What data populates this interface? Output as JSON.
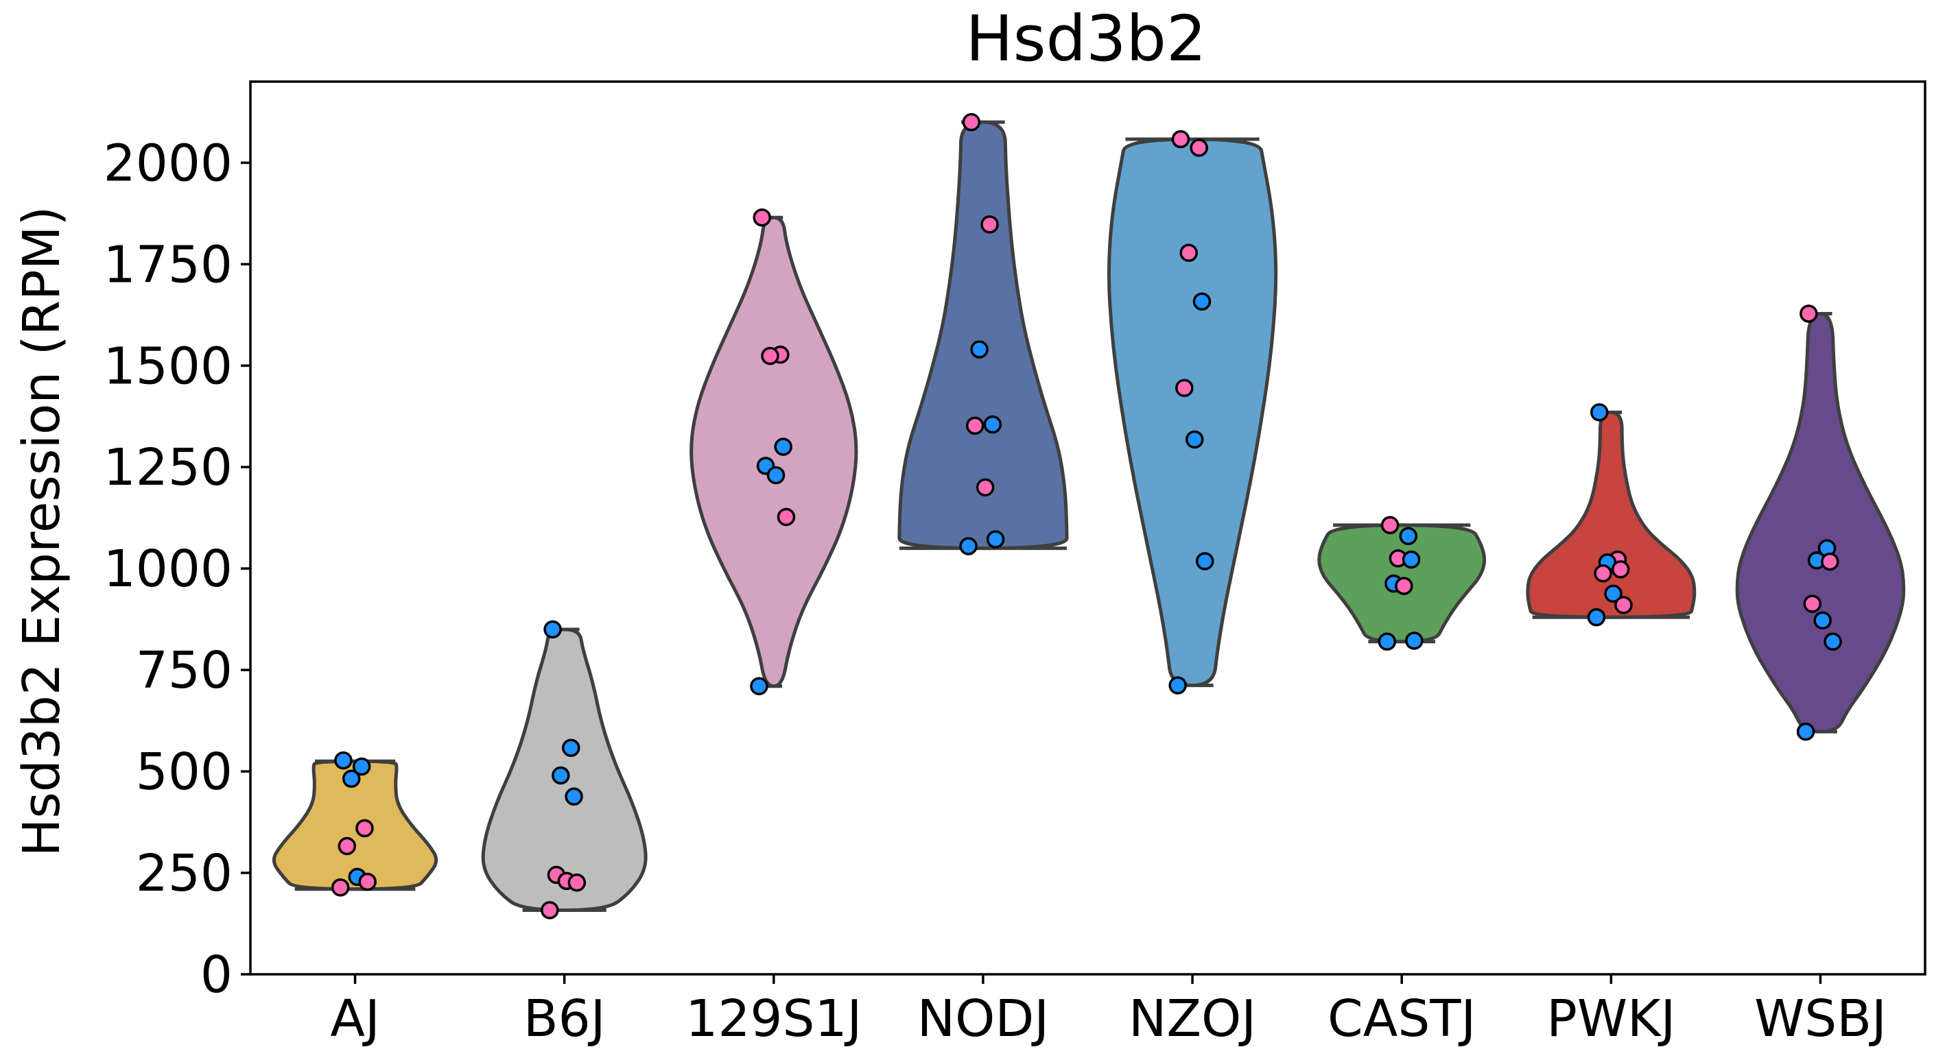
{
  "chart_data": {
    "type": "violin",
    "title": "Hsd3b2",
    "xlabel": "",
    "ylabel": "Hsd3b2 Expression (RPM)",
    "ylim": [
      0,
      2200
    ],
    "yticks": [
      0,
      250,
      500,
      750,
      1000,
      1250,
      1500,
      1750,
      2000
    ],
    "categories": [
      "AJ",
      "B6J",
      "129S1J",
      "NODJ",
      "NZOJ",
      "CASTJ",
      "PWKJ",
      "WSBJ"
    ],
    "grid": false,
    "legend": "none",
    "colors": {
      "point_blue": "#1e90ff",
      "point_pink": "#ff69b4"
    },
    "series": [
      {
        "category": "AJ",
        "color": "#dfb95b",
        "range": [
          210,
          525
        ],
        "profile": [
          [
            210,
            0.72
          ],
          [
            240,
            0.86
          ],
          [
            280,
            1.0
          ],
          [
            320,
            0.88
          ],
          [
            370,
            0.66
          ],
          [
            420,
            0.5
          ],
          [
            470,
            0.48
          ],
          [
            510,
            0.5
          ],
          [
            525,
            0.48
          ]
        ],
        "points": [
          {
            "v": 527,
            "c": "blue"
          },
          {
            "v": 512,
            "c": "blue"
          },
          {
            "v": 482,
            "c": "blue"
          },
          {
            "v": 360,
            "c": "pink"
          },
          {
            "v": 316,
            "c": "pink"
          },
          {
            "v": 240,
            "c": "blue"
          },
          {
            "v": 228,
            "c": "pink"
          },
          {
            "v": 214,
            "c": "pink"
          }
        ]
      },
      {
        "category": "B6J",
        "color": "#bdbdbd",
        "range": [
          158,
          850
        ],
        "profile": [
          [
            158,
            0.5
          ],
          [
            200,
            0.78
          ],
          [
            260,
            0.98
          ],
          [
            330,
            0.96
          ],
          [
            420,
            0.82
          ],
          [
            520,
            0.6
          ],
          [
            620,
            0.44
          ],
          [
            720,
            0.34
          ],
          [
            800,
            0.22
          ],
          [
            850,
            0.18
          ]
        ],
        "points": [
          {
            "v": 850,
            "c": "blue"
          },
          {
            "v": 558,
            "c": "blue"
          },
          {
            "v": 490,
            "c": "blue"
          },
          {
            "v": 438,
            "c": "blue"
          },
          {
            "v": 245,
            "c": "pink"
          },
          {
            "v": 230,
            "c": "pink"
          },
          {
            "v": 226,
            "c": "pink"
          },
          {
            "v": 158,
            "c": "pink"
          }
        ]
      },
      {
        "category": "129S1J",
        "color": "#d3a4c2",
        "range": [
          710,
          1865
        ],
        "profile": [
          [
            710,
            0.1
          ],
          [
            800,
            0.18
          ],
          [
            900,
            0.34
          ],
          [
            1000,
            0.6
          ],
          [
            1100,
            0.82
          ],
          [
            1200,
            0.95
          ],
          [
            1300,
            1.0
          ],
          [
            1400,
            0.92
          ],
          [
            1500,
            0.74
          ],
          [
            1600,
            0.52
          ],
          [
            1700,
            0.3
          ],
          [
            1800,
            0.15
          ],
          [
            1865,
            0.11
          ]
        ],
        "points": [
          {
            "v": 1865,
            "c": "pink"
          },
          {
            "v": 1527,
            "c": "pink"
          },
          {
            "v": 1524,
            "c": "pink"
          },
          {
            "v": 1300,
            "c": "blue"
          },
          {
            "v": 1253,
            "c": "blue"
          },
          {
            "v": 1230,
            "c": "blue"
          },
          {
            "v": 1127,
            "c": "pink"
          },
          {
            "v": 710,
            "c": "blue"
          }
        ]
      },
      {
        "category": "NODJ",
        "color": "#5a71a3",
        "range": [
          1050,
          2100
        ],
        "profile": [
          [
            1050,
            1.0
          ],
          [
            1100,
            1.0
          ],
          [
            1200,
            0.98
          ],
          [
            1300,
            0.9
          ],
          [
            1400,
            0.74
          ],
          [
            1500,
            0.6
          ],
          [
            1600,
            0.48
          ],
          [
            1700,
            0.4
          ],
          [
            1800,
            0.34
          ],
          [
            1900,
            0.3
          ],
          [
            2000,
            0.27
          ],
          [
            2100,
            0.26
          ]
        ],
        "points": [
          {
            "v": 2100,
            "c": "pink"
          },
          {
            "v": 1848,
            "c": "pink"
          },
          {
            "v": 1540,
            "c": "blue"
          },
          {
            "v": 1355,
            "c": "blue"
          },
          {
            "v": 1352,
            "c": "pink"
          },
          {
            "v": 1200,
            "c": "pink"
          },
          {
            "v": 1072,
            "c": "blue"
          },
          {
            "v": 1055,
            "c": "blue"
          }
        ]
      },
      {
        "category": "NZOJ",
        "color": "#62a2cd",
        "range": [
          712,
          2058
        ],
        "profile": [
          [
            712,
            0.25
          ],
          [
            800,
            0.3
          ],
          [
            900,
            0.38
          ],
          [
            1000,
            0.48
          ],
          [
            1100,
            0.58
          ],
          [
            1200,
            0.68
          ],
          [
            1300,
            0.77
          ],
          [
            1400,
            0.85
          ],
          [
            1500,
            0.92
          ],
          [
            1600,
            0.97
          ],
          [
            1700,
            1.0
          ],
          [
            1800,
            0.99
          ],
          [
            1900,
            0.94
          ],
          [
            2000,
            0.85
          ],
          [
            2058,
            0.8
          ]
        ],
        "points": [
          {
            "v": 2058,
            "c": "pink"
          },
          {
            "v": 2037,
            "c": "pink"
          },
          {
            "v": 1778,
            "c": "pink"
          },
          {
            "v": 1658,
            "c": "blue"
          },
          {
            "v": 1445,
            "c": "pink"
          },
          {
            "v": 1318,
            "c": "blue"
          },
          {
            "v": 1018,
            "c": "blue"
          },
          {
            "v": 712,
            "c": "blue"
          }
        ]
      },
      {
        "category": "CASTJ",
        "color": "#5da05c",
        "range": [
          820,
          1107
        ],
        "profile": [
          [
            820,
            0.4
          ],
          [
            860,
            0.5
          ],
          [
            900,
            0.62
          ],
          [
            940,
            0.77
          ],
          [
            980,
            0.94
          ],
          [
            1020,
            1.0
          ],
          [
            1060,
            0.95
          ],
          [
            1107,
            0.82
          ]
        ],
        "points": [
          {
            "v": 1107,
            "c": "pink"
          },
          {
            "v": 1080,
            "c": "blue"
          },
          {
            "v": 1025,
            "c": "pink"
          },
          {
            "v": 1022,
            "c": "blue"
          },
          {
            "v": 963,
            "c": "blue"
          },
          {
            "v": 957,
            "c": "pink"
          },
          {
            "v": 822,
            "c": "blue"
          },
          {
            "v": 820,
            "c": "blue"
          }
        ]
      },
      {
        "category": "PWKJ",
        "color": "#c7443f",
        "range": [
          880,
          1385
        ],
        "profile": [
          [
            880,
            0.94
          ],
          [
            910,
            0.98
          ],
          [
            940,
            1.0
          ],
          [
            980,
            0.98
          ],
          [
            1020,
            0.84
          ],
          [
            1060,
            0.6
          ],
          [
            1100,
            0.4
          ],
          [
            1160,
            0.24
          ],
          [
            1240,
            0.16
          ],
          [
            1300,
            0.13
          ],
          [
            1385,
            0.13
          ]
        ],
        "points": [
          {
            "v": 1385,
            "c": "blue"
          },
          {
            "v": 1022,
            "c": "pink"
          },
          {
            "v": 1015,
            "c": "blue"
          },
          {
            "v": 998,
            "c": "pink"
          },
          {
            "v": 988,
            "c": "pink"
          },
          {
            "v": 938,
            "c": "blue"
          },
          {
            "v": 910,
            "c": "pink"
          },
          {
            "v": 880,
            "c": "blue"
          }
        ]
      },
      {
        "category": "WSBJ",
        "color": "#674a8b",
        "range": [
          598,
          1628
        ],
        "profile": [
          [
            598,
            0.2
          ],
          [
            650,
            0.32
          ],
          [
            700,
            0.5
          ],
          [
            800,
            0.8
          ],
          [
            900,
            0.98
          ],
          [
            960,
            1.0
          ],
          [
            1020,
            0.96
          ],
          [
            1100,
            0.8
          ],
          [
            1200,
            0.54
          ],
          [
            1300,
            0.32
          ],
          [
            1400,
            0.2
          ],
          [
            1500,
            0.16
          ],
          [
            1628,
            0.14
          ]
        ],
        "points": [
          {
            "v": 1628,
            "c": "pink"
          },
          {
            "v": 1050,
            "c": "blue"
          },
          {
            "v": 1020,
            "c": "blue"
          },
          {
            "v": 1017,
            "c": "pink"
          },
          {
            "v": 913,
            "c": "pink"
          },
          {
            "v": 872,
            "c": "blue"
          },
          {
            "v": 820,
            "c": "blue"
          },
          {
            "v": 598,
            "c": "blue"
          }
        ]
      }
    ]
  }
}
